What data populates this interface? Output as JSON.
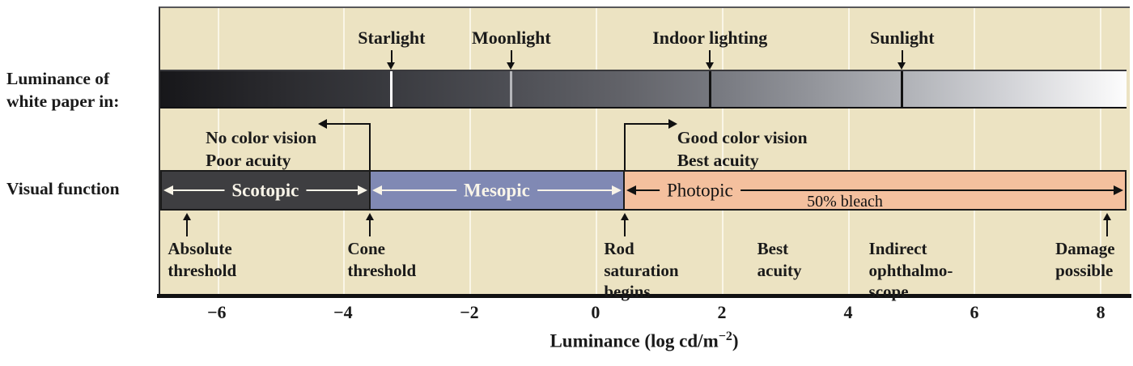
{
  "figure": {
    "left_labels": {
      "luminance_line1": "Luminance of",
      "luminance_line2": "white paper in:",
      "visual_function": "Visual function"
    }
  },
  "chart_data": {
    "type": "scale-diagram",
    "x_axis": {
      "label_prefix": "Luminance (log cd/m",
      "label_sup": "−2",
      "label_suffix": ")",
      "min": -6.92,
      "max": 8.46,
      "ticks": [
        {
          "v": -6,
          "label": "−6"
        },
        {
          "v": -4,
          "label": "−4"
        },
        {
          "v": -2,
          "label": "−2"
        },
        {
          "v": 0,
          "label": "0"
        },
        {
          "v": 2,
          "label": "2"
        },
        {
          "v": 4,
          "label": "4"
        },
        {
          "v": 6,
          "label": "6"
        },
        {
          "v": 8,
          "label": "8"
        }
      ],
      "gridlines_at_ticks": true
    },
    "luminance_gradient_bar": {
      "gradient_stops": [
        {
          "pos": "0%",
          "color": "#17171a"
        },
        {
          "pos": "12%",
          "color": "#2a2a2e"
        },
        {
          "pos": "24%",
          "color": "#3a3b40"
        },
        {
          "pos": "36%",
          "color": "#4d4e54"
        },
        {
          "pos": "48%",
          "color": "#626369"
        },
        {
          "pos": "58%",
          "color": "#787a81"
        },
        {
          "pos": "68%",
          "color": "#94969c"
        },
        {
          "pos": "78%",
          "color": "#b3b5ba"
        },
        {
          "pos": "88%",
          "color": "#d3d4d8"
        },
        {
          "pos": "97%",
          "color": "#f2f2f3"
        },
        {
          "pos": "100%",
          "color": "#fdfdfd"
        }
      ],
      "events": [
        {
          "label": "Starlight",
          "log_cd_m2": -3.25,
          "marker_color": "#ffffff"
        },
        {
          "label": "Moonlight",
          "log_cd_m2": -1.35,
          "marker_color": "#b5b6ba"
        },
        {
          "label": "Indoor lighting",
          "log_cd_m2": 1.8,
          "marker_color": "#121212"
        },
        {
          "label": "Sunlight",
          "log_cd_m2": 4.85,
          "marker_color": "#121212"
        }
      ]
    },
    "visual_function_regions": [
      {
        "label": "Scotopic",
        "from": -6.92,
        "to": -3.6,
        "fill": "#3e3e41",
        "label_color": "#f8f4e8",
        "arrow_color": "#f8f4e8",
        "label_pos_pct": 50,
        "label_bold": true
      },
      {
        "label": "Mesopic",
        "from": -3.6,
        "to": 0.45,
        "fill": "#8089b4",
        "label_color": "#f8f4e8",
        "arrow_color": "#f8f4e8",
        "label_pos_pct": 50,
        "label_bold": true
      },
      {
        "label": "Photopic",
        "from": 0.45,
        "to": 8.46,
        "fill": "#f4c09e",
        "label_color": "#121212",
        "arrow_color": "#121212",
        "label_pos_pct": 15,
        "label_bold": false,
        "sub_label": "50% bleach",
        "sub_label_pos_pct": 44
      }
    ],
    "brackets": [
      {
        "lines": [
          "No color vision",
          "Poor acuity"
        ],
        "at": -3.6,
        "arrow_direction": "left",
        "text_at": -6.2
      },
      {
        "lines": [
          "Good color vision",
          "Best acuity"
        ],
        "at": 0.45,
        "arrow_direction": "right",
        "text_at": 1.28
      }
    ],
    "bottom_annotations": [
      {
        "lines": [
          "Absolute",
          "threshold"
        ],
        "arrow_at": -6.5,
        "text_at": -6.8
      },
      {
        "lines": [
          "Cone",
          "threshold"
        ],
        "arrow_at": -3.6,
        "text_at": -3.95
      },
      {
        "lines": [
          "Rod",
          "saturation",
          "begins"
        ],
        "arrow_at": 0.45,
        "text_at": 0.12
      },
      {
        "lines": [
          "Best",
          "acuity"
        ],
        "arrow_at": null,
        "text_at": 2.55
      },
      {
        "lines": [
          "Indirect",
          "ophthalmo-",
          "scope"
        ],
        "arrow_at": null,
        "text_at": 4.32
      },
      {
        "lines": [
          "Damage",
          "possible"
        ],
        "arrow_at": 8.1,
        "text_at": 7.28
      }
    ],
    "colors": {
      "plot_background": "#ece3c2",
      "gridline": "#faf6e7",
      "axis_line": "#111111",
      "text": "#1a1a1a"
    }
  }
}
